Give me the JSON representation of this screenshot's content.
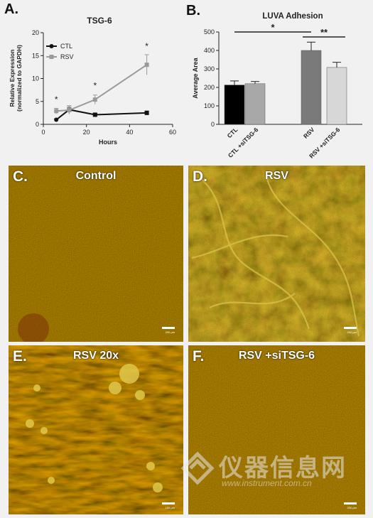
{
  "panel_a": {
    "letter": "A.",
    "chart_data": {
      "type": "line",
      "title": "TSG-6",
      "ylabel_line1": "Relative Expression",
      "ylabel_line2": "(normalized to GAPDH)",
      "xlabel": "Hours",
      "xlim": [
        0,
        60
      ],
      "ylim": [
        0,
        20
      ],
      "xticks": [
        "0",
        "20",
        "40",
        "60"
      ],
      "yticks": [
        "0",
        "5",
        "10",
        "15",
        "20"
      ],
      "series": [
        {
          "name": "CTL",
          "color": "#111111",
          "marker": "circle-square",
          "x": [
            6,
            12,
            24,
            48
          ],
          "y": [
            1.0,
            3.2,
            2.1,
            2.5
          ],
          "err": [
            0.2,
            0.8,
            0.3,
            0.4
          ]
        },
        {
          "name": "RSV",
          "color": "#9a9a9a",
          "marker": "square",
          "x": [
            6,
            12,
            24,
            48
          ],
          "y": [
            2.9,
            3.1,
            5.4,
            13.0
          ],
          "err": [
            0.6,
            0.9,
            1.0,
            2.2
          ]
        }
      ],
      "annotations": [
        {
          "text": "*",
          "x": 6,
          "y": 4.8
        },
        {
          "text": "*",
          "x": 24,
          "y": 7.8
        },
        {
          "text": "*",
          "x": 48,
          "y": 16.4
        }
      ],
      "legend": "top-left"
    }
  },
  "panel_b": {
    "letter": "B.",
    "chart_data": {
      "type": "bar",
      "title": "LUVA Adhesion",
      "ylabel": "Average Area",
      "ylim": [
        0,
        500
      ],
      "yticks": [
        "0",
        "100",
        "200",
        "300",
        "400",
        "500"
      ],
      "categories": [
        "CTL",
        "CTL +siTSG-6",
        "RSV",
        "RSV +siTSG-6"
      ],
      "values": [
        213,
        220,
        400,
        308
      ],
      "errors": [
        22,
        12,
        45,
        28
      ],
      "colors": [
        "#000000",
        "#a8a8a8",
        "#7a7a7a",
        "#d7d7d7"
      ],
      "significance": [
        {
          "text": "*",
          "from": 0,
          "to": 2
        },
        {
          "text": "**",
          "from": 2,
          "to": 3
        }
      ]
    }
  },
  "micrographs": [
    {
      "letter": "C.",
      "title": "Control",
      "scale": "200 µm",
      "style": "control"
    },
    {
      "letter": "D.",
      "title": "RSV",
      "scale": "200 µm",
      "style": "rsv"
    },
    {
      "letter": "E.",
      "title": "RSV 20x",
      "scale": "100 µm",
      "style": "rsv20"
    },
    {
      "letter": "F.",
      "title": "RSV +siTSG-6",
      "scale": "200 µm",
      "style": "sitsg"
    }
  ],
  "watermark": {
    "cn": "仪器信息网",
    "url": "www.instrument.com.cn"
  }
}
